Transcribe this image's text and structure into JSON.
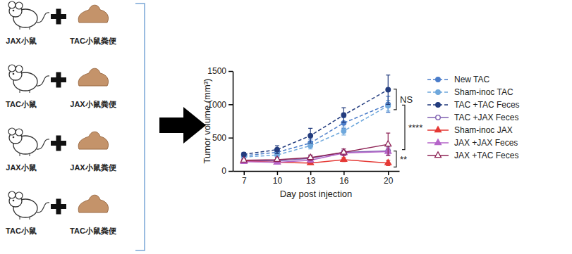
{
  "diagram": {
    "rows": [
      {
        "mouse": "JAX小鼠",
        "feces": "TAC小鼠粪便"
      },
      {
        "mouse": "TAC小鼠",
        "feces": "JAX小鼠粪便"
      },
      {
        "mouse": "JAX小鼠",
        "feces": "JAX小鼠粪便"
      },
      {
        "mouse": "TAC小鼠",
        "feces": "TAC小鼠粪便"
      }
    ]
  },
  "chart_data": {
    "type": "line",
    "x_label": "Day post injection",
    "y_label": "Tumor volume (mm³)",
    "x": [
      7,
      10,
      13,
      16,
      20
    ],
    "xlim": [
      6,
      21
    ],
    "xticks": [
      7,
      10,
      13,
      16,
      20
    ],
    "ylim": [
      0,
      1500
    ],
    "yticks": [
      0,
      500,
      1000,
      1500
    ],
    "legend": "right",
    "series": [
      {
        "name": "New TAC",
        "color": "#4a7cc9",
        "marker": "circle",
        "line_style": "dashed",
        "values": [
          230,
          280,
          420,
          720,
          1000
        ],
        "errors": [
          30,
          50,
          60,
          80,
          120
        ]
      },
      {
        "name": "Sham-inoc TAC",
        "color": "#6fa8dc",
        "marker": "circle",
        "line_style": "dashed",
        "values": [
          210,
          240,
          380,
          600,
          980
        ],
        "errors": [
          20,
          40,
          50,
          60,
          80
        ]
      },
      {
        "name": "TAC +TAC Feces",
        "color": "#233c7e",
        "marker": "circle",
        "line_style": "dashed",
        "values": [
          250,
          320,
          530,
          840,
          1220
        ],
        "errors": [
          30,
          60,
          110,
          110,
          220
        ]
      },
      {
        "name": "TAC +JAX Feces",
        "color": "#7e5fb0",
        "marker": "circle-open",
        "line_style": "solid",
        "values": [
          150,
          150,
          190,
          280,
          300
        ],
        "errors": [
          20,
          20,
          30,
          50,
          60
        ]
      },
      {
        "name": "Sham-inoc JAX",
        "color": "#e53935",
        "marker": "triangle",
        "line_style": "solid",
        "values": [
          150,
          130,
          120,
          170,
          120
        ],
        "errors": [
          20,
          20,
          20,
          30,
          40
        ]
      },
      {
        "name": "JAX +JAX Feces",
        "color": "#b565c9",
        "marker": "triangle",
        "line_style": "solid",
        "values": [
          140,
          130,
          160,
          270,
          290
        ],
        "errors": [
          20,
          20,
          30,
          40,
          50
        ]
      },
      {
        "name": "JAX +TAC Feces",
        "color": "#8e2456",
        "marker": "triangle-open",
        "line_style": "solid",
        "values": [
          160,
          170,
          200,
          280,
          400
        ],
        "errors": [
          20,
          30,
          40,
          50,
          170
        ]
      }
    ],
    "annotations": [
      {
        "text": "NS",
        "y_range": [
          920,
          1230
        ]
      },
      {
        "text": "****",
        "y_range": [
          320,
          990
        ]
      },
      {
        "text": "**",
        "y_range": [
          60,
          300
        ]
      }
    ]
  }
}
